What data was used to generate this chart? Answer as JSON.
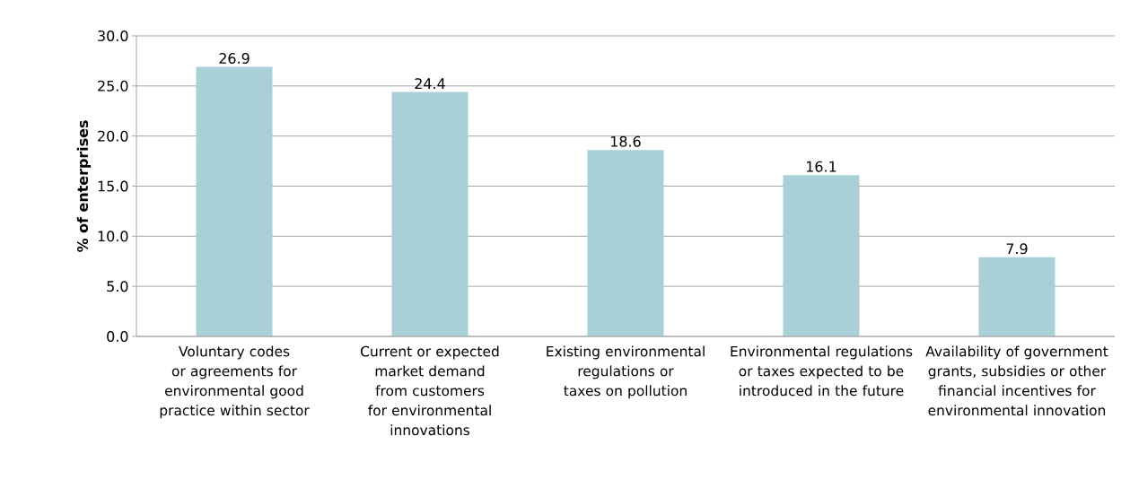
{
  "chart_data": {
    "type": "bar",
    "ylabel": "% of enterprises",
    "categories": [
      "Voluntary codes or agreements for environmental good practice within sector",
      "Current or expected market demand from customers for environmental innovations",
      "Existing environmental regulations or taxes on pollution",
      "Environmental regulations or taxes expected to be introduced in the future",
      "Availability of government grants, subsidies or other financial incentives for environmental innovation"
    ],
    "values": [
      26.9,
      24.4,
      18.6,
      16.1,
      7.9
    ],
    "color": "#a9cfd7",
    "ylim": [
      0,
      30
    ],
    "yticks": [
      {
        "value": 0,
        "label": "0.0"
      },
      {
        "value": 5,
        "label": "5.0"
      },
      {
        "value": 10,
        "label": "10.0"
      },
      {
        "value": 15,
        "label": "15.0"
      },
      {
        "value": 20,
        "label": "20.0"
      },
      {
        "value": 25,
        "label": "25.0"
      },
      {
        "value": 30,
        "label": "30.0"
      }
    ],
    "grid": "y",
    "data_labels": true
  }
}
